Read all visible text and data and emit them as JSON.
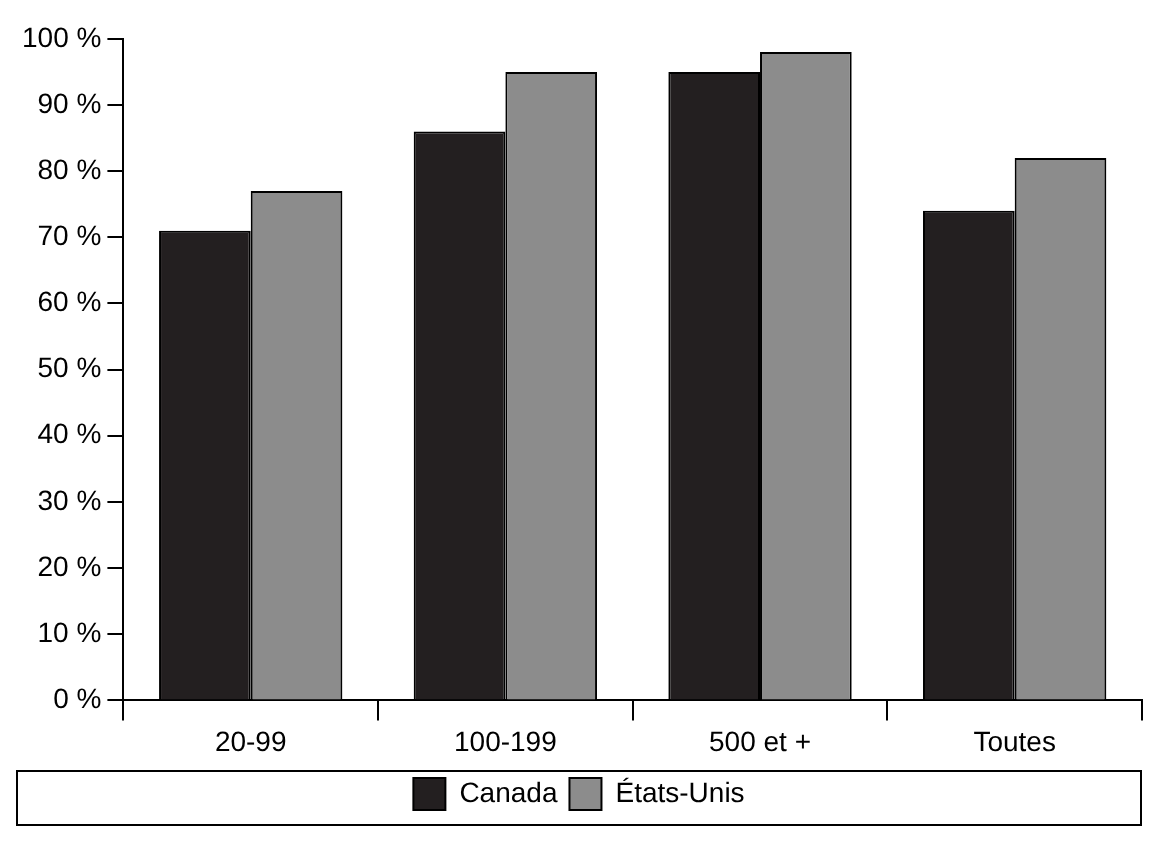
{
  "chart_data": {
    "type": "bar",
    "categories": [
      "20-99",
      "100-199",
      "500 et +",
      "Toutes"
    ],
    "series": [
      {
        "name": "Canada",
        "color": "#231f20",
        "values": [
          71,
          86,
          95,
          74
        ]
      },
      {
        "name": "États-Unis",
        "color": "#8c8c8c",
        "values": [
          77,
          95,
          98,
          82
        ]
      }
    ],
    "ylim": [
      0,
      100
    ],
    "yticks": [
      {
        "value": 0,
        "label": "0 %"
      },
      {
        "value": 10,
        "label": "10 %"
      },
      {
        "value": 20,
        "label": "20 %"
      },
      {
        "value": 30,
        "label": "30 %"
      },
      {
        "value": 40,
        "label": "40 %"
      },
      {
        "value": 50,
        "label": "50 %"
      },
      {
        "value": 60,
        "label": "60 %"
      },
      {
        "value": 70,
        "label": "70 %"
      },
      {
        "value": 80,
        "label": "80 %"
      },
      {
        "value": 90,
        "label": "90 %"
      },
      {
        "value": 100,
        "label": "100 %"
      }
    ],
    "grid": false,
    "legend": "bottom"
  }
}
